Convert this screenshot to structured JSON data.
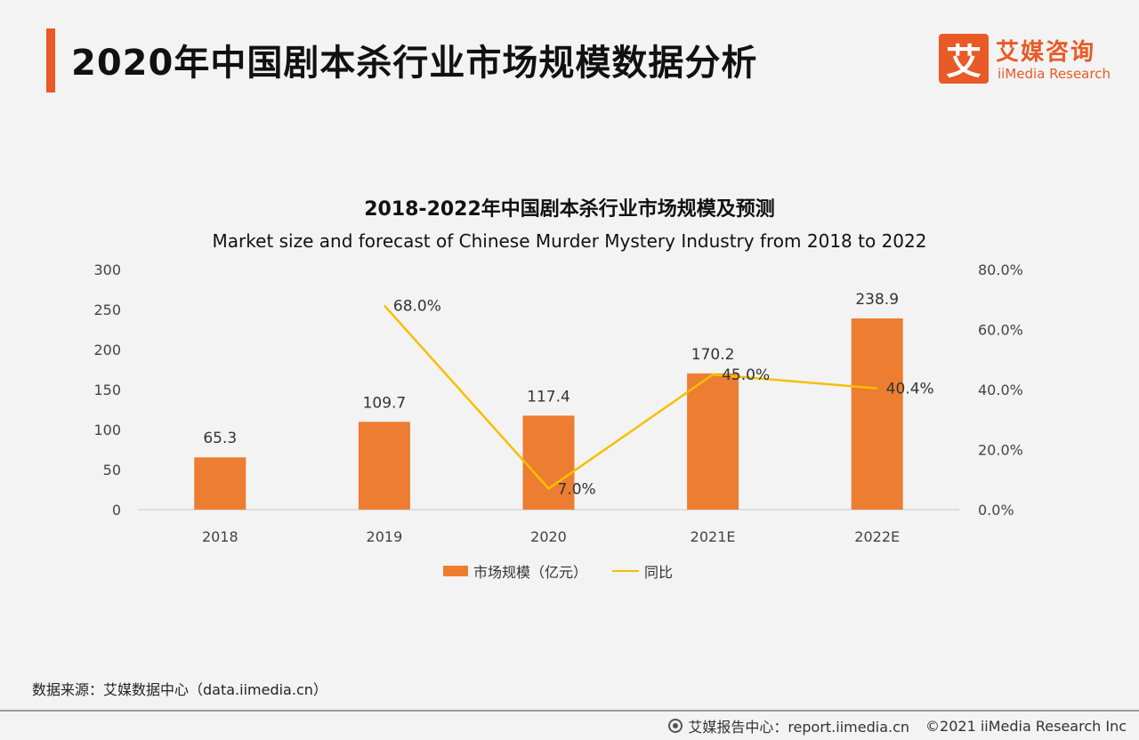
{
  "header": {
    "title": "2020年中国剧本杀行业市场规模数据分析",
    "logo_mark": "艾",
    "logo_cn": "艾媒咨询",
    "logo_en": "iiMedia Research"
  },
  "colors": {
    "accent": "#e85a26",
    "bar": "#ed7d31",
    "line": "#f5c000"
  },
  "chart_data": {
    "type": "bar",
    "title": "2018-2022年中国剧本杀行业市场规模及预测",
    "subtitle": "Market size and forecast of Chinese Murder Mystery Industry from 2018 to 2022",
    "categories": [
      "2018",
      "2019",
      "2020",
      "2021E",
      "2022E"
    ],
    "series": [
      {
        "name": "市场规模（亿元）",
        "type": "bar",
        "axis": "left",
        "values": [
          65.3,
          109.7,
          117.4,
          170.2,
          238.9
        ],
        "labels": [
          "65.3",
          "109.7",
          "117.4",
          "170.2",
          "238.9"
        ]
      },
      {
        "name": "同比",
        "type": "line",
        "axis": "right",
        "values": [
          null,
          68.0,
          7.0,
          45.0,
          40.4
        ],
        "labels": [
          "",
          "68.0%",
          "7.0%",
          "45.0%",
          "40.4%"
        ]
      }
    ],
    "y_left": {
      "min": 0,
      "max": 300,
      "ticks": [
        "0",
        "50",
        "100",
        "150",
        "200",
        "250",
        "300"
      ]
    },
    "y_right": {
      "min": 0,
      "max": 80,
      "ticks": [
        "0.0%",
        "20.0%",
        "40.0%",
        "60.0%",
        "80.0%"
      ]
    },
    "grid": false,
    "legend_position": "bottom"
  },
  "legend": {
    "bar_label": "市场规模（亿元）",
    "line_label": "同比"
  },
  "source": "数据来源：艾媒数据中心（data.iimedia.cn）",
  "footer": {
    "report": "艾媒报告中心：report.iimedia.cn",
    "copyright": "©2021  iiMedia Research  Inc"
  }
}
